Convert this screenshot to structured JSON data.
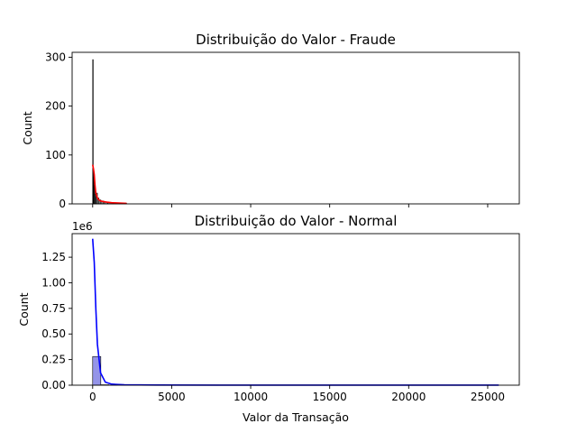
{
  "chart_data": [
    {
      "type": "histogram",
      "title": "Distribuição do Valor - Fraude",
      "xlabel": "",
      "ylabel": "Count",
      "xlim": [
        -1300,
        27000
      ],
      "ylim": [
        0,
        310
      ],
      "yticks": [
        0,
        100,
        200,
        300
      ],
      "ytick_labels": [
        "0",
        "100",
        "200",
        "300"
      ],
      "x_tick_positions": [
        0,
        5000,
        10000,
        15000,
        20000,
        25000
      ],
      "bar_fill": "#666666",
      "bar_edge": "#000000",
      "bins": [
        {
          "x0": 0,
          "x1": 10,
          "count": 295
        },
        {
          "x0": 10,
          "x1": 30,
          "count": 70
        },
        {
          "x0": 30,
          "x1": 60,
          "count": 45
        },
        {
          "x0": 60,
          "x1": 100,
          "count": 55
        },
        {
          "x0": 100,
          "x1": 150,
          "count": 38
        },
        {
          "x0": 150,
          "x1": 220,
          "count": 20
        },
        {
          "x0": 220,
          "x1": 300,
          "count": 22
        },
        {
          "x0": 300,
          "x1": 400,
          "count": 12
        },
        {
          "x0": 400,
          "x1": 520,
          "count": 8
        },
        {
          "x0": 520,
          "x1": 700,
          "count": 6
        },
        {
          "x0": 700,
          "x1": 950,
          "count": 4
        },
        {
          "x0": 950,
          "x1": 1300,
          "count": 3
        },
        {
          "x0": 1300,
          "x1": 1700,
          "count": 2
        },
        {
          "x0": 1700,
          "x1": 2150,
          "count": 1
        }
      ],
      "kde": {
        "color": "#ff0000",
        "x": [
          0,
          50,
          100,
          150,
          200,
          300,
          400,
          500,
          700,
          900,
          1200,
          1500,
          1800,
          2150
        ],
        "y": [
          80,
          72,
          60,
          38,
          22,
          12,
          8,
          6,
          4.5,
          3.5,
          2.5,
          2,
          1.5,
          1
        ]
      }
    },
    {
      "type": "histogram",
      "title": "Distribuição do Valor - Normal",
      "xlabel": "Valor da Transação",
      "ylabel": "Count",
      "offset_text": "1e6",
      "xlim": [
        -1300,
        27000
      ],
      "ylim": [
        0,
        1.48
      ],
      "yticks": [
        0,
        0.25,
        0.5,
        0.75,
        1.0,
        1.25
      ],
      "ytick_labels": [
        "0.00",
        "0.25",
        "0.50",
        "0.75",
        "1.00",
        "1.25"
      ],
      "x_tick_positions": [
        0,
        5000,
        10000,
        15000,
        20000,
        25000
      ],
      "xtick_labels": [
        "0",
        "5000",
        "10000",
        "15000",
        "20000",
        "25000"
      ],
      "bar_fill": "#7070e0",
      "bar_edge": "#000000",
      "bins": [
        {
          "x0": 0,
          "x1": 515,
          "count": 0.28
        },
        {
          "x0": 515,
          "x1": 1030,
          "count": 0.004
        },
        {
          "x0": 1030,
          "x1": 1545,
          "count": 0.001
        }
      ],
      "kde": {
        "color": "#0000ff",
        "x": [
          0,
          100,
          200,
          300,
          500,
          800,
          1200,
          2000,
          4000,
          8000,
          15000,
          25700
        ],
        "y": [
          1.43,
          1.2,
          0.75,
          0.4,
          0.12,
          0.03,
          0.01,
          0.004,
          0.002,
          0.001,
          0.001,
          0.001
        ]
      }
    }
  ]
}
